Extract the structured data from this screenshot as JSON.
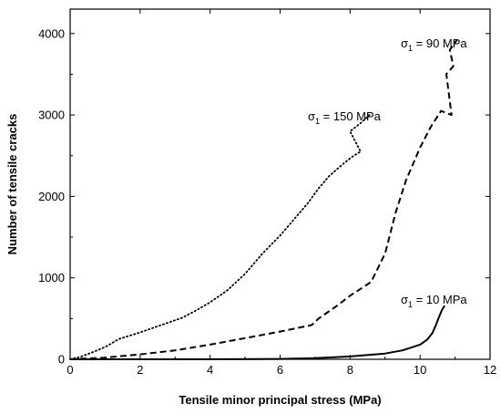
{
  "chart_data": {
    "type": "line",
    "title": "",
    "xlabel": "Tensile minor principal stress (MPa)",
    "ylabel": "Number of tensile cracks",
    "xlim": [
      0,
      12
    ],
    "ylim": [
      0,
      4300
    ],
    "xticks": [
      0,
      2,
      4,
      6,
      8,
      10,
      12
    ],
    "yticks": [
      0,
      1000,
      2000,
      3000,
      4000
    ],
    "grid": false,
    "legend": "none",
    "series": [
      {
        "label_prefix": "σ",
        "label_sub": "1",
        "label_value": " = 150 MPa",
        "style": "dotted",
        "color": "#000000",
        "x": [
          0.0,
          0.3,
          0.6,
          1.0,
          1.4,
          2.0,
          2.6,
          3.2,
          3.6,
          4.0,
          4.5,
          5.0,
          5.5,
          6.0,
          6.4,
          6.8,
          7.1,
          7.4,
          7.8,
          8.1,
          8.3,
          8.0,
          8.3,
          8.55
        ],
        "y": [
          0,
          30,
          80,
          150,
          250,
          330,
          420,
          510,
          600,
          700,
          850,
          1050,
          1300,
          1520,
          1720,
          1920,
          2100,
          2250,
          2400,
          2500,
          2550,
          2800,
          2900,
          3000
        ]
      },
      {
        "label_prefix": "σ",
        "label_sub": "1",
        "label_value": " = 90 MPa",
        "style": "dashed",
        "color": "#000000",
        "x": [
          0.0,
          1.0,
          2.0,
          3.0,
          4.0,
          5.0,
          6.0,
          6.9,
          7.1,
          7.6,
          8.0,
          8.6,
          9.0,
          9.3,
          9.6,
          10.0,
          10.3,
          10.6,
          10.9,
          10.75,
          10.95,
          10.85,
          11.05
        ],
        "y": [
          0,
          20,
          60,
          110,
          180,
          260,
          340,
          420,
          500,
          650,
          780,
          950,
          1300,
          1800,
          2200,
          2600,
          2850,
          3050,
          3000,
          3500,
          3600,
          3800,
          3920
        ]
      },
      {
        "label_prefix": "σ",
        "label_sub": "1",
        "label_value": " = 10 MPa",
        "style": "solid",
        "color": "#000000",
        "x": [
          0.0,
          2.0,
          4.0,
          6.0,
          7.0,
          8.0,
          9.0,
          9.5,
          10.0,
          10.2,
          10.35,
          10.45,
          10.55,
          10.62,
          10.7
        ],
        "y": [
          0,
          0,
          0,
          5,
          15,
          35,
          70,
          110,
          180,
          240,
          320,
          420,
          530,
          600,
          660
        ]
      }
    ]
  }
}
